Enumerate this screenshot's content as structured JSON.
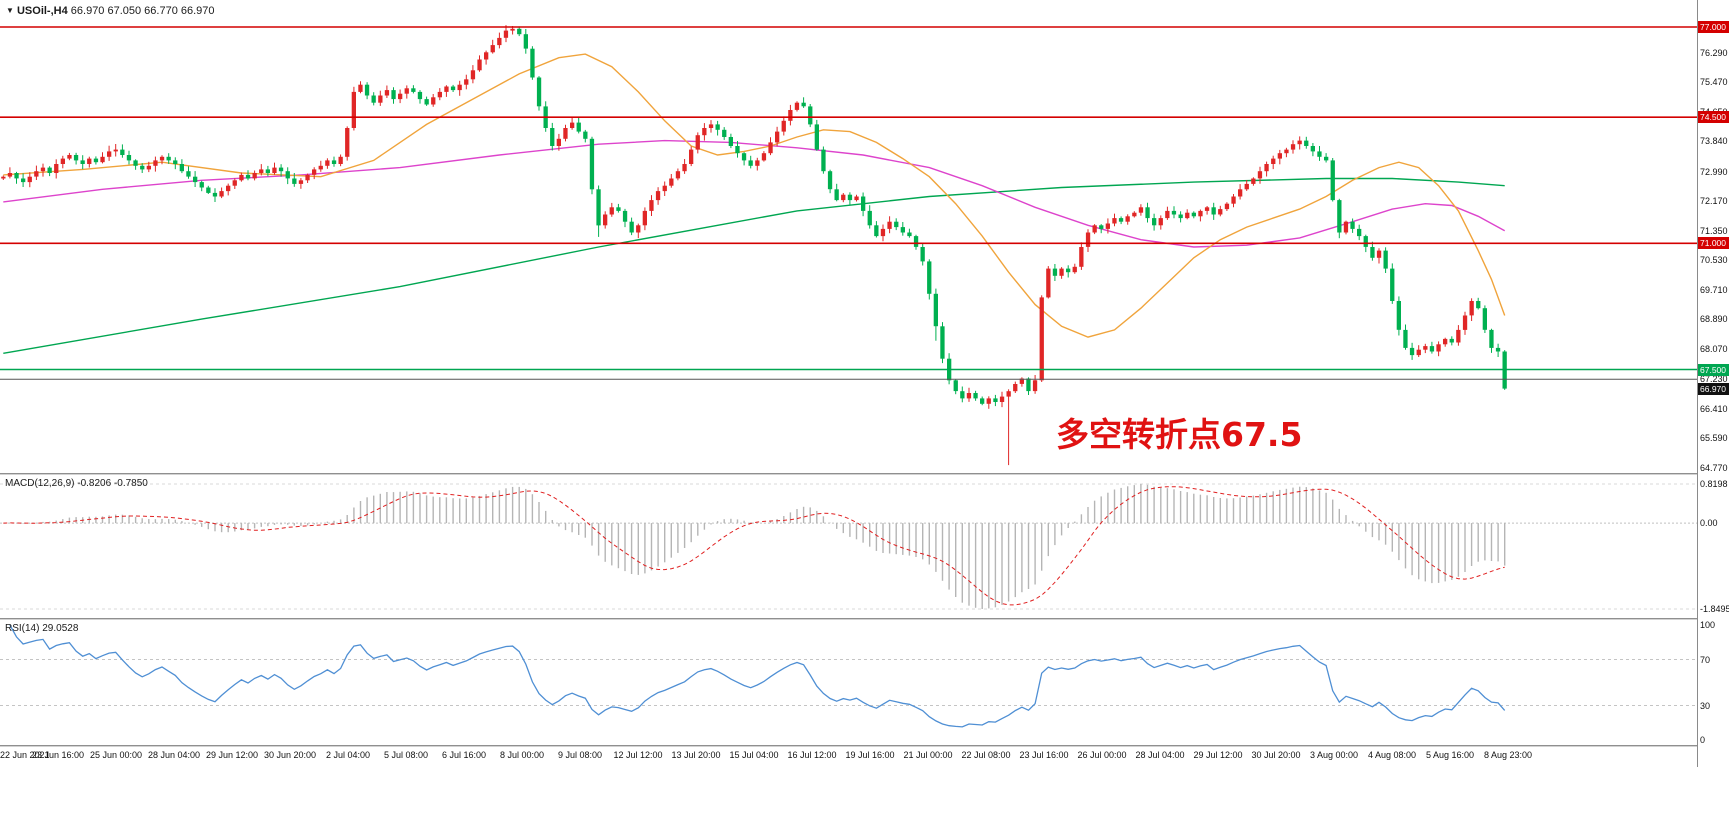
{
  "header": {
    "collapse_icon": "▼",
    "symbol_period": "USOil-,H4",
    "ohlc": "66.970 67.050 66.770 66.970"
  },
  "chart_data": {
    "type": "candlestick",
    "title": "USOil-,H4",
    "annotation": {
      "text": "多空转折点67.5",
      "color": "#e01212"
    },
    "up_color": "#e02626",
    "down_color": "#00b050",
    "y_range": [
      64.63,
      77.75
    ],
    "first_open": 72.8,
    "closes": [
      72.85,
      72.95,
      72.8,
      72.7,
      72.85,
      73.0,
      73.1,
      72.95,
      73.2,
      73.35,
      73.45,
      73.3,
      73.2,
      73.35,
      73.25,
      73.4,
      73.55,
      73.6,
      73.45,
      73.3,
      73.15,
      73.05,
      73.15,
      73.3,
      73.4,
      73.3,
      73.2,
      73.0,
      72.85,
      72.7,
      72.55,
      72.4,
      72.3,
      72.45,
      72.6,
      72.75,
      72.9,
      72.8,
      72.95,
      73.05,
      72.95,
      73.1,
      73.0,
      72.8,
      72.65,
      72.75,
      72.9,
      73.05,
      73.15,
      73.3,
      73.2,
      73.4,
      74.2,
      75.2,
      75.4,
      75.1,
      74.9,
      75.1,
      75.25,
      75.0,
      75.15,
      75.3,
      75.2,
      75.0,
      74.85,
      75.05,
      75.2,
      75.35,
      75.25,
      75.4,
      75.55,
      75.8,
      76.1,
      76.3,
      76.5,
      76.7,
      76.9,
      76.95,
      76.8,
      76.4,
      75.6,
      74.8,
      74.2,
      73.7,
      73.9,
      74.2,
      74.35,
      74.1,
      73.9,
      72.5,
      71.5,
      71.8,
      72.0,
      71.9,
      71.6,
      71.3,
      71.5,
      71.9,
      72.2,
      72.45,
      72.6,
      72.8,
      73.0,
      73.2,
      73.6,
      74.0,
      74.2,
      74.3,
      74.15,
      73.95,
      73.7,
      73.5,
      73.3,
      73.15,
      73.3,
      73.5,
      73.8,
      74.1,
      74.4,
      74.7,
      74.9,
      74.8,
      74.3,
      73.6,
      73.0,
      72.5,
      72.2,
      72.35,
      72.2,
      72.3,
      71.9,
      71.5,
      71.2,
      71.4,
      71.6,
      71.45,
      71.3,
      71.2,
      70.9,
      70.5,
      69.6,
      68.7,
      67.8,
      67.2,
      66.9,
      66.7,
      66.85,
      66.7,
      66.55,
      66.7,
      66.6,
      66.75,
      66.9,
      67.1,
      67.25,
      66.9,
      67.2,
      69.5,
      70.3,
      70.1,
      70.3,
      70.2,
      70.35,
      70.9,
      71.3,
      71.5,
      71.4,
      71.55,
      71.7,
      71.6,
      71.75,
      71.85,
      72.0,
      71.7,
      71.5,
      71.7,
      71.9,
      71.8,
      71.7,
      71.85,
      71.75,
      71.9,
      72.0,
      71.8,
      71.95,
      72.1,
      72.3,
      72.5,
      72.65,
      72.8,
      73.0,
      73.2,
      73.35,
      73.5,
      73.6,
      73.75,
      73.85,
      73.7,
      73.55,
      73.4,
      73.3,
      72.2,
      71.3,
      71.6,
      71.4,
      71.2,
      70.9,
      70.6,
      70.8,
      70.3,
      69.4,
      68.6,
      68.1,
      67.9,
      68.05,
      68.15,
      68.0,
      68.2,
      68.35,
      68.25,
      68.6,
      69.0,
      69.4,
      69.2,
      68.6,
      68.1,
      68.0,
      66.97
    ],
    "wick_overrides": {
      "77": {
        "high": 77.03
      },
      "90": {
        "low": 71.18
      },
      "141": {
        "low": 68.3
      },
      "152": {
        "low": 64.85
      }
    },
    "levels": [
      {
        "price": 77.0,
        "color": "#d40000",
        "width": 1.6
      },
      {
        "price": 74.5,
        "color": "#d40000",
        "width": 1.6
      },
      {
        "price": 71.0,
        "color": "#d40000",
        "width": 1.6
      },
      {
        "price": 67.5,
        "color": "#00a651",
        "width": 1.4
      },
      {
        "price": 67.23,
        "color": "#555555",
        "width": 1
      }
    ],
    "ma_lines": [
      {
        "name": "ma-slow-green-line",
        "color": "#00a651",
        "points": [
          [
            0,
            67.95
          ],
          [
            30,
            68.9
          ],
          [
            60,
            69.8
          ],
          [
            90,
            70.9
          ],
          [
            120,
            71.9
          ],
          [
            140,
            72.3
          ],
          [
            160,
            72.55
          ],
          [
            180,
            72.7
          ],
          [
            200,
            72.8
          ],
          [
            210,
            72.8
          ],
          [
            220,
            72.7
          ],
          [
            227,
            72.6
          ]
        ]
      },
      {
        "name": "ma-mid-magenta-line",
        "color": "#dd44cc",
        "points": [
          [
            0,
            72.15
          ],
          [
            15,
            72.5
          ],
          [
            30,
            72.75
          ],
          [
            45,
            72.9
          ],
          [
            60,
            73.1
          ],
          [
            75,
            73.45
          ],
          [
            90,
            73.75
          ],
          [
            100,
            73.85
          ],
          [
            110,
            73.8
          ],
          [
            120,
            73.65
          ],
          [
            130,
            73.45
          ],
          [
            140,
            73.1
          ],
          [
            148,
            72.6
          ],
          [
            156,
            72.0
          ],
          [
            164,
            71.5
          ],
          [
            172,
            71.1
          ],
          [
            180,
            70.9
          ],
          [
            188,
            70.95
          ],
          [
            196,
            71.15
          ],
          [
            204,
            71.6
          ],
          [
            210,
            71.95
          ],
          [
            215,
            72.1
          ],
          [
            219,
            72.05
          ],
          [
            223,
            71.75
          ],
          [
            227,
            71.35
          ]
        ]
      },
      {
        "name": "ma-fast-orange-line",
        "color": "#f0a43c",
        "points": [
          [
            0,
            72.9
          ],
          [
            12,
            73.05
          ],
          [
            24,
            73.25
          ],
          [
            36,
            72.95
          ],
          [
            48,
            72.85
          ],
          [
            56,
            73.3
          ],
          [
            64,
            74.3
          ],
          [
            72,
            75.1
          ],
          [
            78,
            75.7
          ],
          [
            84,
            76.15
          ],
          [
            88,
            76.25
          ],
          [
            92,
            75.9
          ],
          [
            96,
            75.2
          ],
          [
            100,
            74.4
          ],
          [
            104,
            73.7
          ],
          [
            108,
            73.45
          ],
          [
            112,
            73.55
          ],
          [
            116,
            73.7
          ],
          [
            120,
            73.95
          ],
          [
            124,
            74.15
          ],
          [
            128,
            74.1
          ],
          [
            132,
            73.8
          ],
          [
            136,
            73.35
          ],
          [
            140,
            72.85
          ],
          [
            144,
            72.1
          ],
          [
            148,
            71.2
          ],
          [
            152,
            70.2
          ],
          [
            156,
            69.3
          ],
          [
            160,
            68.7
          ],
          [
            164,
            68.4
          ],
          [
            168,
            68.6
          ],
          [
            172,
            69.2
          ],
          [
            176,
            69.9
          ],
          [
            180,
            70.6
          ],
          [
            184,
            71.1
          ],
          [
            188,
            71.45
          ],
          [
            192,
            71.7
          ],
          [
            196,
            71.95
          ],
          [
            200,
            72.3
          ],
          [
            204,
            72.75
          ],
          [
            208,
            73.1
          ],
          [
            211,
            73.25
          ],
          [
            214,
            73.1
          ],
          [
            217,
            72.6
          ],
          [
            220,
            71.9
          ],
          [
            223,
            70.8
          ],
          [
            225,
            70.0
          ],
          [
            227,
            69.0
          ]
        ]
      }
    ],
    "price_axis_labels": [
      "76.290",
      "75.470",
      "74.650",
      "73.840",
      "72.990",
      "72.170",
      "71.350",
      "70.530",
      "69.710",
      "68.890",
      "68.070",
      "67.230",
      "66.410",
      "65.590",
      "64.770"
    ],
    "price_tags": [
      {
        "text": "77.000",
        "price": 77.0,
        "bg": "#d40000",
        "current": false
      },
      {
        "text": "74.500",
        "price": 74.5,
        "bg": "#d40000",
        "current": false
      },
      {
        "text": "71.000",
        "price": 71.0,
        "bg": "#d40000",
        "current": false
      },
      {
        "text": "67.500",
        "price": 67.5,
        "bg": "#00a651",
        "current": false
      },
      {
        "text": "66.970",
        "price": 66.97,
        "bg": "#111111",
        "current": true
      }
    ],
    "x_labels": [
      "22 Jun 2021",
      "23 Jun 16:00",
      "25 Jun 00:00",
      "28 Jun 04:00",
      "29 Jun 12:00",
      "30 Jun 20:00",
      "2 Jul 04:00",
      "5 Jul 08:00",
      "6 Jul 16:00",
      "8 Jul 00:00",
      "9 Jul 08:00",
      "12 Jul 12:00",
      "13 Jul 20:00",
      "15 Jul 04:00",
      "16 Jul 12:00",
      "19 Jul 16:00",
      "21 Jul 00:00",
      "22 Jul 08:00",
      "23 Jul 16:00",
      "26 Jul 00:00",
      "28 Jul 04:00",
      "29 Jul 12:00",
      "30 Jul 20:00",
      "3 Aug 00:00",
      "4 Aug 08:00",
      "5 Aug 16:00",
      "8 Aug 23:00"
    ],
    "indicators": {
      "macd": {
        "title": "MACD(12,26,9)",
        "display_values": "-0.8206 -0.7850",
        "axis_max": "0.8198",
        "axis_zero": "0.00",
        "axis_min": "-1.8495",
        "fast": 12,
        "slow": 26,
        "signal": 9,
        "histogram_color": "#b5b5b5",
        "signal_color": "#e02020"
      },
      "rsi": {
        "title": "RSI(14)",
        "display_value": "29.0528",
        "axis_labels": [
          "100",
          "70",
          "30",
          "0"
        ],
        "period": 14,
        "levels": [
          70,
          30
        ],
        "line_color": "#4f8fd4"
      }
    }
  }
}
